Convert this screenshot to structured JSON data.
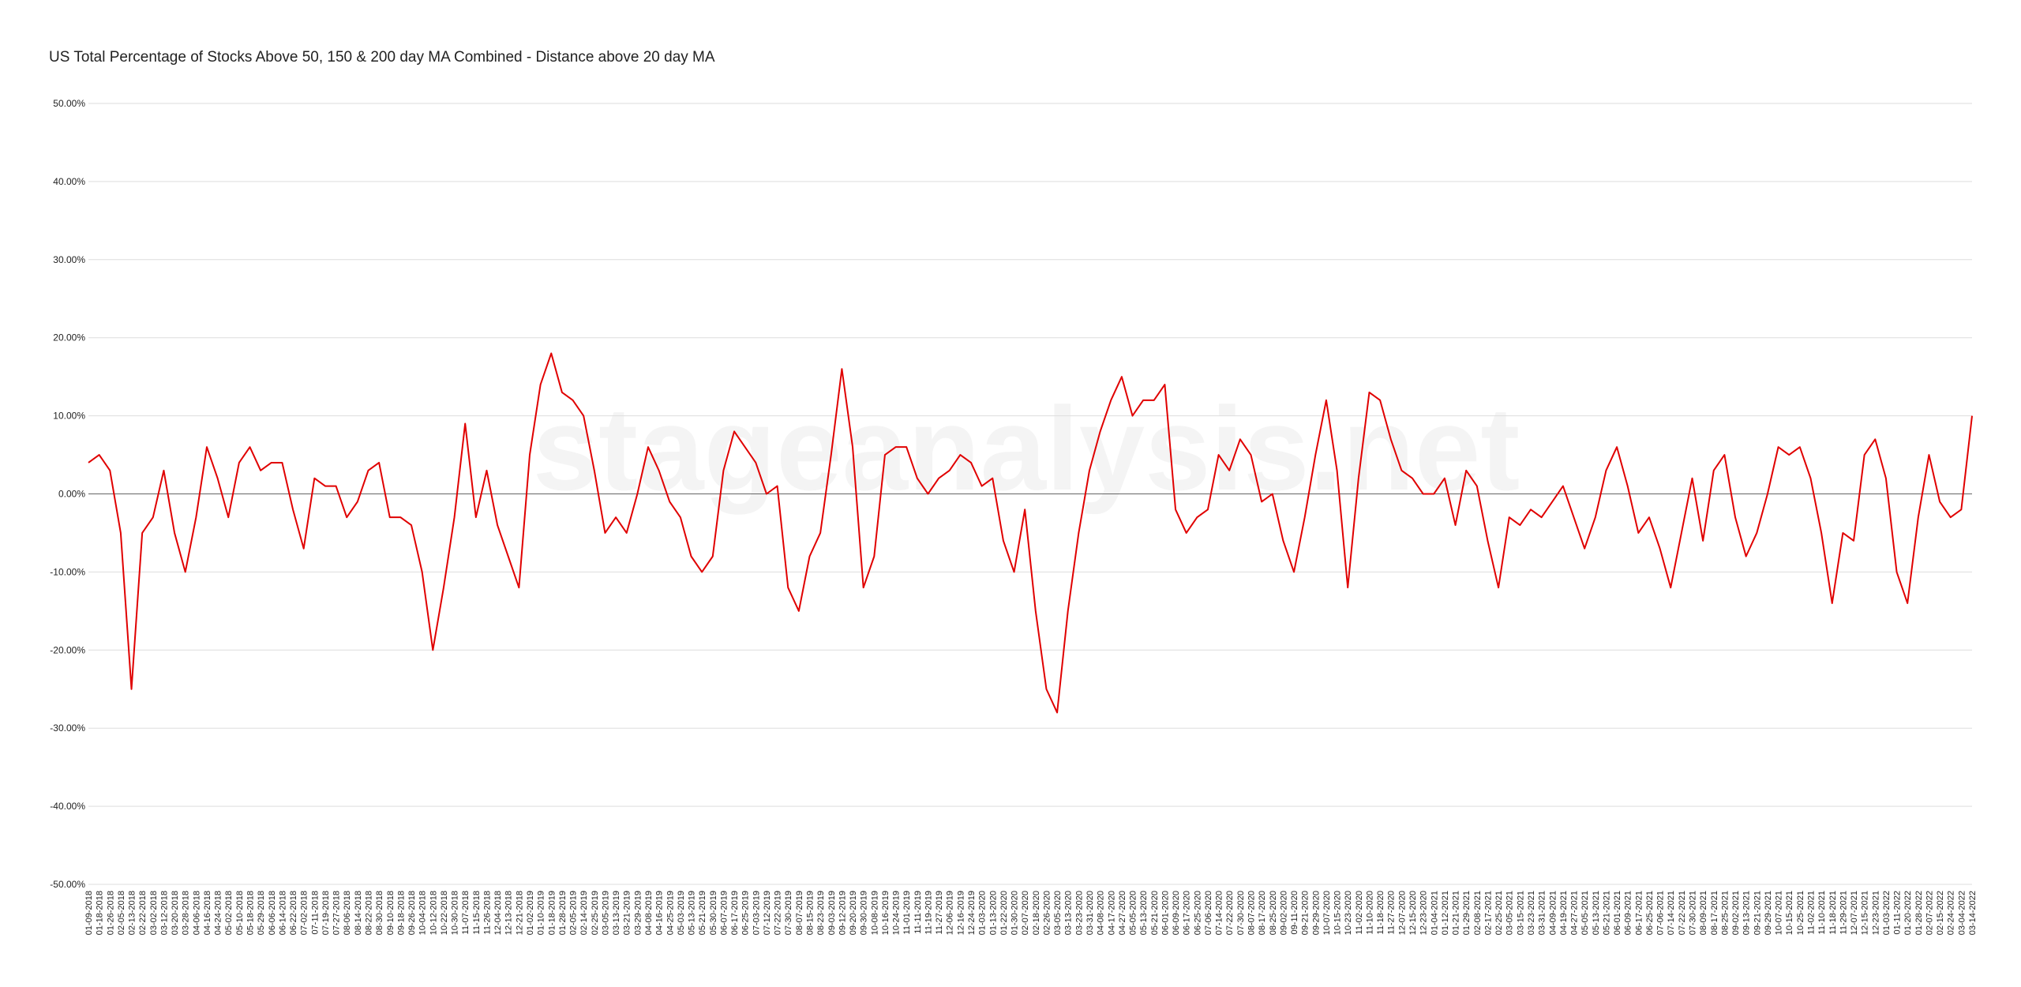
{
  "chart_data": {
    "type": "line",
    "title": "US Total Percentage of Stocks Above 50, 150 & 200 day MA Combined - Distance above 20 day MA",
    "watermark": "stageanalysis.net",
    "categories": [
      "01-09-2018",
      "01-18-2018",
      "01-26-2018",
      "02-05-2018",
      "02-13-2018",
      "02-22-2018",
      "03-02-2018",
      "03-12-2018",
      "03-20-2018",
      "03-28-2018",
      "04-06-2018",
      "04-16-2018",
      "04-24-2018",
      "05-02-2018",
      "05-10-2018",
      "05-18-2018",
      "05-29-2018",
      "06-06-2018",
      "06-14-2018",
      "06-22-2018",
      "07-02-2018",
      "07-11-2018",
      "07-19-2018",
      "07-27-2018",
      "08-06-2018",
      "08-14-2018",
      "08-22-2018",
      "08-30-2018",
      "09-10-2018",
      "09-18-2018",
      "09-26-2018",
      "10-04-2018",
      "10-12-2018",
      "10-22-2018",
      "10-30-2018",
      "11-07-2018",
      "11-15-2018",
      "11-26-2018",
      "12-04-2018",
      "12-13-2018",
      "12-21-2018",
      "01-02-2019",
      "01-10-2019",
      "01-18-2019",
      "01-28-2019",
      "02-05-2019",
      "02-14-2019",
      "02-25-2019",
      "03-05-2019",
      "03-13-2019",
      "03-21-2019",
      "03-29-2019",
      "04-08-2019",
      "04-16-2019",
      "04-25-2019",
      "05-03-2019",
      "05-13-2019",
      "05-21-2019",
      "05-30-2019",
      "06-07-2019",
      "06-17-2019",
      "06-25-2019",
      "07-03-2019",
      "07-12-2019",
      "07-22-2019",
      "07-30-2019",
      "08-07-2019",
      "08-15-2019",
      "08-23-2019",
      "09-03-2019",
      "09-12-2019",
      "09-20-2019",
      "09-30-2019",
      "10-08-2019",
      "10-16-2019",
      "10-24-2019",
      "11-01-2019",
      "11-11-2019",
      "11-19-2019",
      "11-27-2019",
      "12-06-2019",
      "12-16-2019",
      "12-24-2019",
      "01-03-2020",
      "01-13-2020",
      "01-22-2020",
      "01-30-2020",
      "02-07-2020",
      "02-18-2020",
      "02-26-2020",
      "03-05-2020",
      "03-13-2020",
      "03-23-2020",
      "03-31-2020",
      "04-08-2020",
      "04-17-2020",
      "04-27-2020",
      "05-05-2020",
      "05-13-2020",
      "05-21-2020",
      "06-01-2020",
      "06-09-2020",
      "06-17-2020",
      "06-25-2020",
      "07-06-2020",
      "07-14-2020",
      "07-22-2020",
      "07-30-2020",
      "08-07-2020",
      "08-17-2020",
      "08-25-2020",
      "09-02-2020",
      "09-11-2020",
      "09-21-2020",
      "09-29-2020",
      "10-07-2020",
      "10-15-2020",
      "10-23-2020",
      "11-02-2020",
      "11-10-2020",
      "11-18-2020",
      "11-27-2020",
      "12-07-2020",
      "12-15-2020",
      "12-23-2020",
      "01-04-2021",
      "01-12-2021",
      "01-21-2021",
      "01-29-2021",
      "02-08-2021",
      "02-17-2021",
      "02-25-2021",
      "03-05-2021",
      "03-15-2021",
      "03-23-2021",
      "03-31-2021",
      "04-09-2021",
      "04-19-2021",
      "04-27-2021",
      "05-05-2021",
      "05-13-2021",
      "05-21-2021",
      "06-01-2021",
      "06-09-2021",
      "06-17-2021",
      "06-25-2021",
      "07-06-2021",
      "07-14-2021",
      "07-22-2021",
      "07-30-2021",
      "08-09-2021",
      "08-17-2021",
      "08-25-2021",
      "09-02-2021",
      "09-13-2021",
      "09-21-2021",
      "09-29-2021",
      "10-07-2021",
      "10-15-2021",
      "10-25-2021",
      "11-02-2021",
      "11-10-2021",
      "11-18-2021",
      "11-29-2021",
      "12-07-2021",
      "12-15-2021",
      "12-23-2021",
      "01-03-2022",
      "01-11-2022",
      "01-20-2022",
      "01-28-2022",
      "02-07-2022",
      "02-15-2022",
      "02-24-2022",
      "03-04-2022",
      "03-14-2022"
    ],
    "series": [
      {
        "name": "Distance above 20 day MA",
        "color": "#e00000",
        "values": [
          4,
          5,
          3,
          -5,
          -25,
          -5,
          -3,
          3,
          -5,
          -10,
          -3,
          6,
          2,
          -3,
          4,
          6,
          3,
          4,
          4,
          -2,
          -7,
          2,
          1,
          1,
          -3,
          -1,
          3,
          4,
          -3,
          -3,
          -4,
          -10,
          -20,
          -12,
          -3,
          9,
          -3,
          3,
          -4,
          -8,
          -12,
          5,
          14,
          18,
          13,
          12,
          10,
          3,
          -5,
          -3,
          -5,
          0,
          6,
          3,
          -1,
          -3,
          -8,
          -10,
          -8,
          3,
          8,
          6,
          4,
          0,
          1,
          -12,
          -15,
          -8,
          -5,
          5,
          16,
          6,
          -12,
          -8,
          5,
          6,
          6,
          2,
          0,
          2,
          3,
          5,
          4,
          1,
          2,
          -6,
          -10,
          -2,
          -15,
          -25,
          -28,
          -15,
          -5,
          3,
          8,
          12,
          15,
          10,
          12,
          12,
          14,
          -2,
          -5,
          -3,
          -2,
          5,
          3,
          7,
          5,
          -1,
          0,
          -6,
          -10,
          -3,
          5,
          12,
          3,
          -12,
          2,
          13,
          12,
          7,
          3,
          2,
          0,
          0,
          2,
          -4,
          3,
          1,
          -6,
          -12,
          -3,
          -4,
          -2,
          -3,
          -1,
          1,
          -3,
          -7,
          -3,
          3,
          6,
          1,
          -5,
          -3,
          -7,
          -12,
          -5,
          2,
          -6,
          3,
          5,
          -3,
          -8,
          -5,
          0,
          6,
          5,
          6,
          2,
          -5,
          -14,
          -5,
          -6,
          5,
          7,
          2,
          -10,
          -14,
          -3,
          5,
          -1,
          -3,
          -2,
          10
        ]
      }
    ],
    "ylim": [
      -50,
      50
    ],
    "yticks": [
      {
        "value": -50,
        "label": "-50.00%"
      },
      {
        "value": -40,
        "label": "-40.00%"
      },
      {
        "value": -30,
        "label": "-30.00%"
      },
      {
        "value": -20,
        "label": "-20.00%"
      },
      {
        "value": -10,
        "label": "-10.00%"
      },
      {
        "value": 0,
        "label": "0.00%"
      },
      {
        "value": 10,
        "label": "10.00%"
      },
      {
        "value": 20,
        "label": "20.00%"
      },
      {
        "value": 30,
        "label": "30.00%"
      },
      {
        "value": 40,
        "label": "40.00%"
      },
      {
        "value": 50,
        "label": "50.00%"
      }
    ],
    "grid": true
  }
}
